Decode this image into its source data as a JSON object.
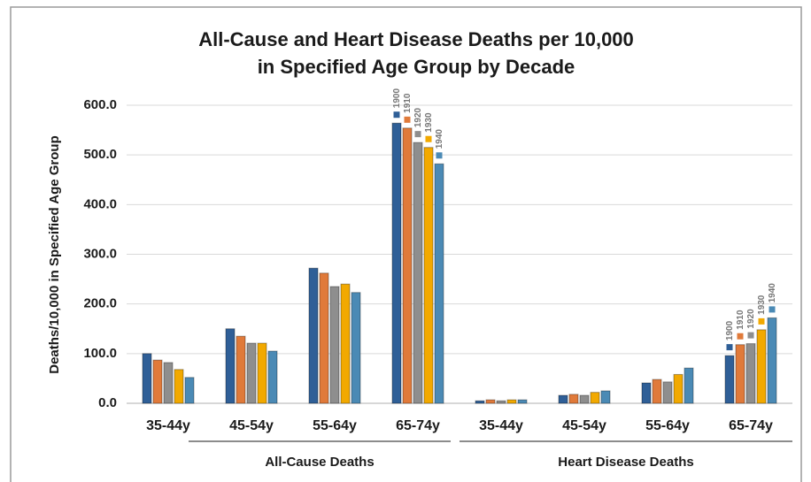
{
  "chart_data": {
    "type": "bar",
    "title": [
      "All-Cause and Heart Disease Deaths per 10,000",
      "in Specified Age Group by Decade"
    ],
    "y_label": "Deaths/10,000 in Specified Age Group",
    "categories": [
      "35-44y",
      "45-54y",
      "55-64y",
      "65-74y",
      "35-44y",
      "45-54y",
      "55-64y",
      "65-74y"
    ],
    "groups": [
      "All-Cause Deaths",
      "Heart Disease Deaths"
    ],
    "series": [
      {
        "name": "1900",
        "color": "#2f5f97",
        "values": [
          100,
          150,
          272,
          564,
          5,
          16,
          41,
          96
        ]
      },
      {
        "name": "1910",
        "color": "#e07a3a",
        "values": [
          87,
          135,
          262,
          554,
          7,
          18,
          48,
          118
        ]
      },
      {
        "name": "1920",
        "color": "#8e8e8e",
        "values": [
          82,
          121,
          235,
          525,
          5,
          16,
          43,
          120
        ]
      },
      {
        "name": "1930",
        "color": "#f2a900",
        "values": [
          68,
          121,
          240,
          515,
          7,
          22,
          58,
          148
        ]
      },
      {
        "name": "1940",
        "color": "#4b8ab5",
        "values": [
          52,
          105,
          223,
          482,
          7,
          25,
          71,
          172
        ]
      }
    ],
    "ylim": [
      0,
      600
    ],
    "yticks": [
      {
        "value": 0,
        "label": "0.0"
      },
      {
        "value": 100,
        "label": "100.0"
      },
      {
        "value": 200,
        "label": "200.0"
      },
      {
        "value": 300,
        "label": "300.0"
      },
      {
        "value": 400,
        "label": "400.0"
      },
      {
        "value": 500,
        "label": "500.0"
      },
      {
        "value": 600,
        "label": "600.0"
      }
    ],
    "grid": true
  }
}
